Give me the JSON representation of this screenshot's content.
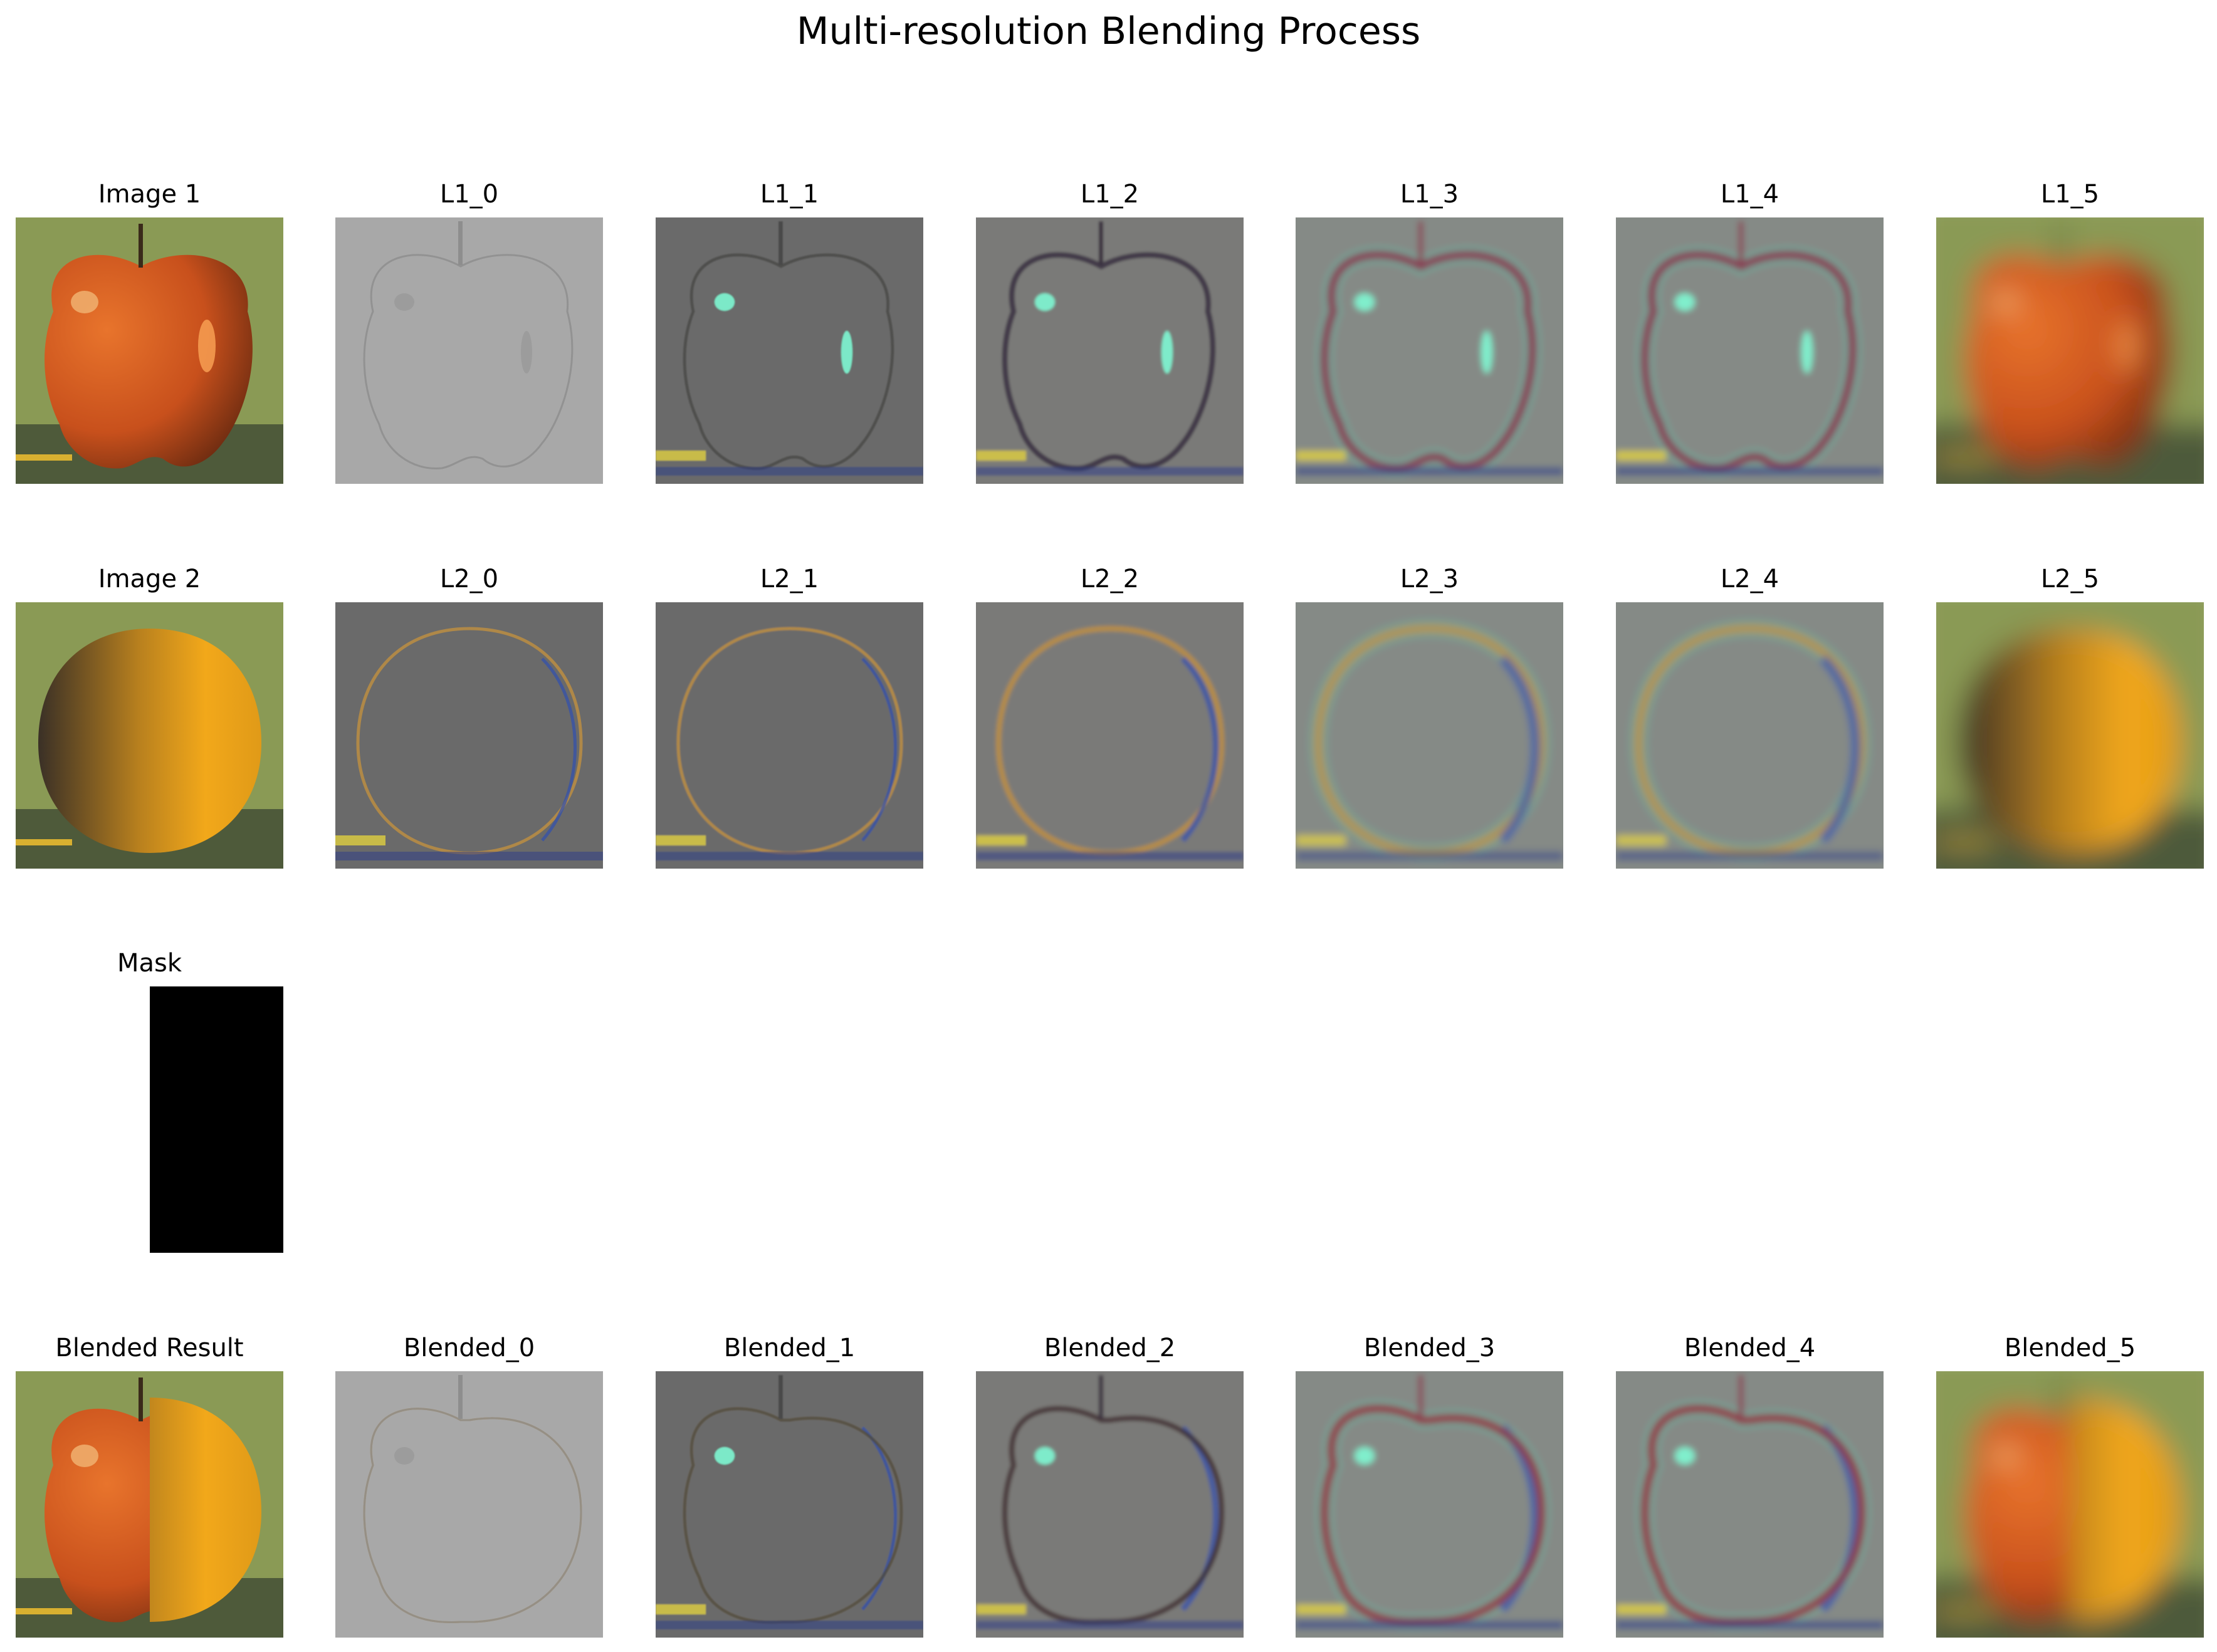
{
  "title": "Multi-resolution Blending Process",
  "rows": [
    {
      "id": "image1-pyramid",
      "panels": [
        {
          "label": "Image 1",
          "kind": "apple",
          "style": "natural",
          "blur": 0
        },
        {
          "label": "L1_0",
          "kind": "apple",
          "style": "detail-light",
          "blur": 0
        },
        {
          "label": "L1_1",
          "kind": "apple",
          "style": "detail-dark",
          "blur": 1
        },
        {
          "label": "L1_2",
          "kind": "apple",
          "style": "detail-color",
          "blur": 2
        },
        {
          "label": "L1_3",
          "kind": "apple",
          "style": "detail-cool",
          "blur": 5
        },
        {
          "label": "L1_4",
          "kind": "apple",
          "style": "detail-cool",
          "blur": 5
        },
        {
          "label": "L1_5",
          "kind": "apple",
          "style": "natural",
          "blur": 22
        }
      ]
    },
    {
      "id": "image2-pyramid",
      "panels": [
        {
          "label": "Image 2",
          "kind": "orange",
          "style": "natural",
          "blur": 0
        },
        {
          "label": "L2_0",
          "kind": "orange",
          "style": "detail-dark",
          "blur": 0
        },
        {
          "label": "L2_1",
          "kind": "orange",
          "style": "detail-dark",
          "blur": 1
        },
        {
          "label": "L2_2",
          "kind": "orange",
          "style": "detail-color",
          "blur": 3
        },
        {
          "label": "L2_3",
          "kind": "orange",
          "style": "detail-cool",
          "blur": 6
        },
        {
          "label": "L2_4",
          "kind": "orange",
          "style": "detail-cool",
          "blur": 6
        },
        {
          "label": "L2_5",
          "kind": "orange",
          "style": "natural",
          "blur": 22
        }
      ]
    },
    {
      "id": "mask-row",
      "panels": [
        {
          "label": "Mask",
          "kind": "mask",
          "style": "mask",
          "blur": 0
        }
      ]
    },
    {
      "id": "blended-pyramid",
      "panels": [
        {
          "label": "Blended Result",
          "kind": "blend",
          "style": "natural",
          "blur": 0
        },
        {
          "label": "Blended_0",
          "kind": "blend",
          "style": "detail-light",
          "blur": 0
        },
        {
          "label": "Blended_1",
          "kind": "blend",
          "style": "detail-dark",
          "blur": 1
        },
        {
          "label": "Blended_2",
          "kind": "blend",
          "style": "detail-color",
          "blur": 3
        },
        {
          "label": "Blended_3",
          "kind": "blend",
          "style": "detail-cool",
          "blur": 5
        },
        {
          "label": "Blended_4",
          "kind": "blend",
          "style": "detail-cool",
          "blur": 5
        },
        {
          "label": "Blended_5",
          "kind": "blend",
          "style": "natural",
          "blur": 22
        }
      ]
    }
  ],
  "colors": {
    "apple": "#c8501c",
    "orange": "#f2a81a",
    "background_green": "#8a9a55",
    "detail_gray": "#8c8c8c",
    "highlight_cyan": "#7fffd8"
  }
}
